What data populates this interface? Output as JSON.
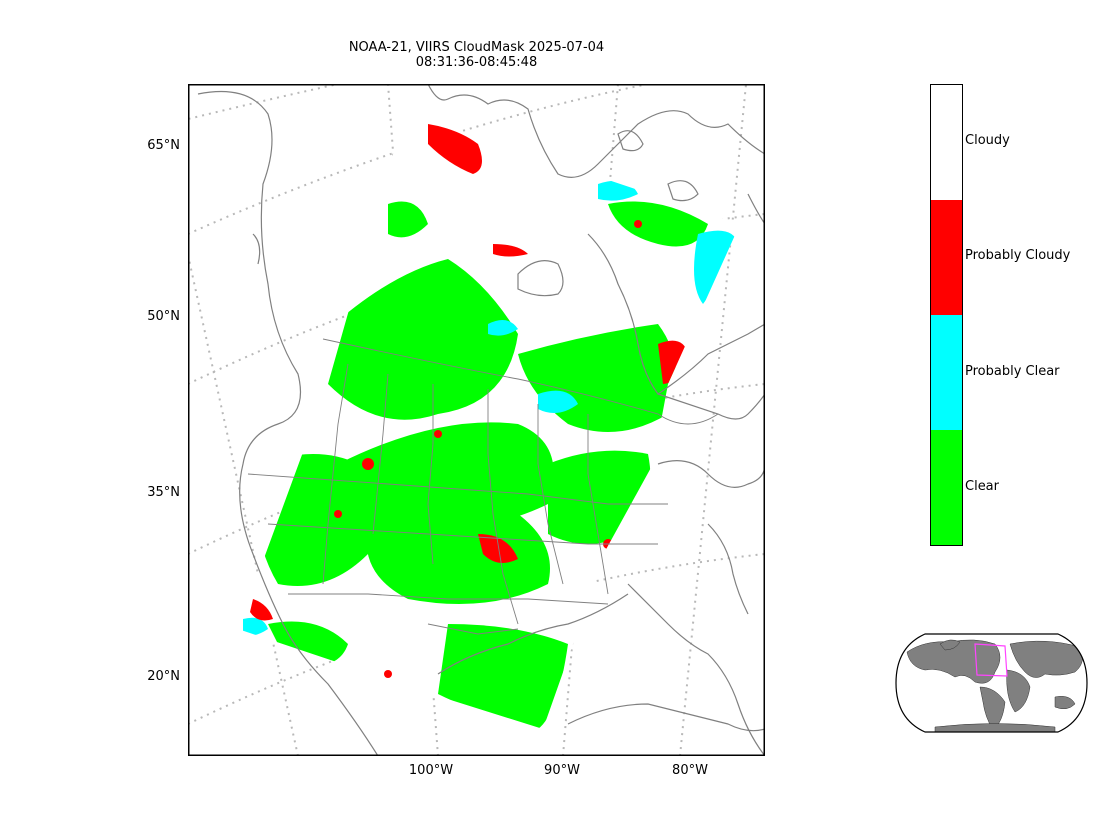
{
  "title": {
    "line1": "NOAA-21, VIIRS CloudMask 2025-07-04",
    "line2": "08:31:36-08:45:48"
  },
  "lat_labels": [
    "65°N",
    "50°N",
    "35°N",
    "20°N"
  ],
  "lon_labels": [
    "100°W",
    "90°W",
    "80°W"
  ],
  "colorbar": {
    "labels": [
      "Cloudy",
      "Probably Cloudy",
      "Probably Clear",
      "Clear"
    ],
    "colors": [
      "#ffffff",
      "#ff0000",
      "#00ffff",
      "#00ff00"
    ]
  },
  "colors": {
    "clear": "#00ff00",
    "probably_clear": "#00ffff",
    "probably_cloudy": "#ff0000",
    "cloudy": "#ffffff",
    "coastline": "#808080",
    "graticule": "#b0b0b0",
    "inset_land": "#808080",
    "inset_box": "#ff44ff"
  }
}
